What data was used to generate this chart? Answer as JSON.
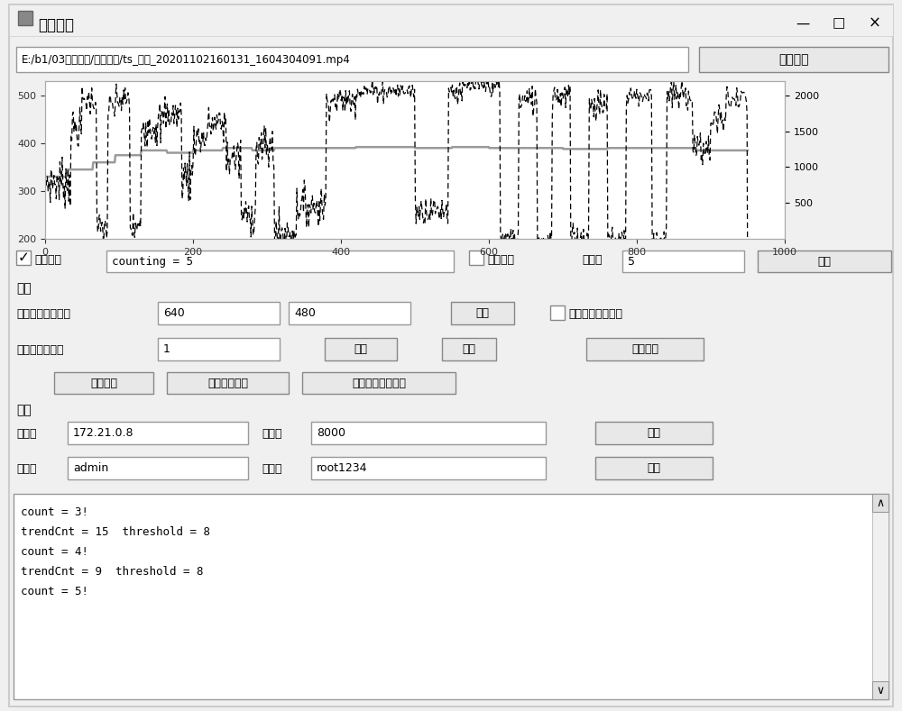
{
  "title": "计数测试",
  "file_path": "E:/b1/03钻杆计数/测试素材/ts_退杆_20201102160131_1604304091.mp4",
  "open_btn": "打开视频",
  "confirm_btn1": "确定",
  "label_resolution": "结果显示分辨率：",
  "val_width": "640",
  "val_height": "480",
  "label_speed": "视频播放倍率：",
  "val_speed": "1",
  "btn_confirm2": "确定",
  "btn_continue": "继续",
  "btn_stop_video": "停止视频",
  "btn_save_tag": "保存标签",
  "btn_open_tag_path": "打开标签路径",
  "btn_open_tag_tool": "打开标签修正工具",
  "label_address": "地址：",
  "val_address": "172.21.0.8",
  "label_port": "端口：",
  "val_port": "8000",
  "btn_start": "开始",
  "label_account": "账号：",
  "val_account": "admin",
  "label_password": "密码：",
  "val_password": "root1234",
  "btn_stop": "停止",
  "check_update": "更新坐标",
  "counting_text": "counting = 5",
  "check_left_rod": "左侧退杆",
  "label_skip": "跳帧：",
  "val_skip": "5",
  "log_lines": [
    "count = 3!",
    "trendCnt = 15  threshold = 8",
    "count = 4!",
    "trendCnt = 9  threshold = 8",
    "count = 5!"
  ],
  "check_no_response": "没反应点这个试试",
  "section_recording": "录像",
  "section_realtime": "实时",
  "bg_color": "#f0f0f0",
  "win_border": "#aaaaaa",
  "input_border": "#999999",
  "btn_face": "#e8e8e8"
}
